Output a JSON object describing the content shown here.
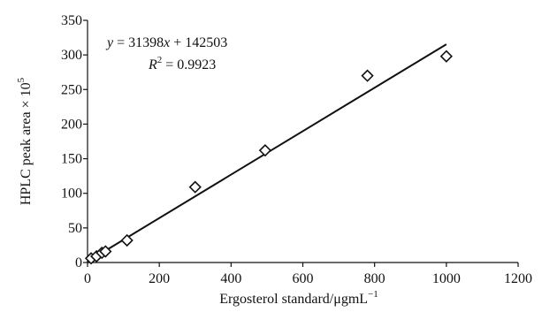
{
  "chart_data": {
    "type": "scatter",
    "xlabel_main": "Ergosterol standard/μgmL",
    "xlabel_sup": "−1",
    "ylabel_main": "HPLC peak area × 10",
    "ylabel_sup": "5",
    "xlim": [
      0,
      1200
    ],
    "ylim": [
      0,
      350
    ],
    "xticks": [
      0,
      200,
      400,
      600,
      800,
      1000,
      1200
    ],
    "yticks": [
      0,
      50,
      100,
      150,
      200,
      250,
      300,
      350
    ],
    "grid": false,
    "legend": "none",
    "series": [
      {
        "marker": "diamond-open",
        "points": [
          {
            "x": 10,
            "y": 6
          },
          {
            "x": 25,
            "y": 9
          },
          {
            "x": 40,
            "y": 14
          },
          {
            "x": 50,
            "y": 16
          },
          {
            "x": 110,
            "y": 32
          },
          {
            "x": 300,
            "y": 109
          },
          {
            "x": 495,
            "y": 162
          },
          {
            "x": 780,
            "y": 270
          },
          {
            "x": 1000,
            "y": 298
          }
        ]
      }
    ],
    "trendline": {
      "slope_per_1e5": 0.31398,
      "intercept_per_1e5": 1.42503,
      "x_range": [
        0,
        1000
      ]
    },
    "annotation": {
      "eq_y": "y",
      "eq_rest": " = 31398",
      "eq_x": "x",
      "eq_tail": " + 142503",
      "r2_R": "R",
      "r2_sup": "2",
      "r2_value": " = 0.9923"
    }
  }
}
